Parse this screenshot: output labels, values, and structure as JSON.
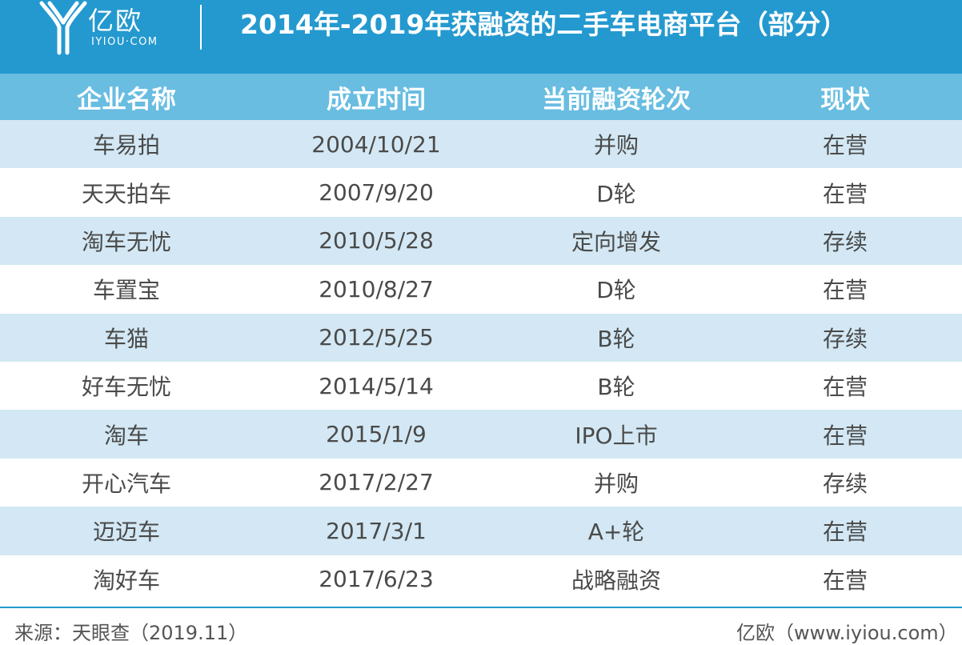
{
  "header": {
    "logo_text": "亿欧",
    "logo_sub": "IYIOU·COM",
    "title": "2014年-2019年获融资的二手车电商平台（部分）"
  },
  "table": {
    "columns": [
      "企业名称",
      "成立时间",
      "当前融资轮次",
      "现状"
    ],
    "rows": [
      [
        "车易拍",
        "2004/10/21",
        "并购",
        "在营"
      ],
      [
        "天天拍车",
        "2007/9/20",
        "D轮",
        "在营"
      ],
      [
        "淘车无忧",
        "2010/5/28",
        "定向增发",
        "存续"
      ],
      [
        "车置宝",
        "2010/8/27",
        "D轮",
        "在营"
      ],
      [
        "车猫",
        "2012/5/25",
        "B轮",
        "存续"
      ],
      [
        "好车无忧",
        "2014/5/14",
        "B轮",
        "在营"
      ],
      [
        "淘车",
        "2015/1/9",
        "IPO上市",
        "在营"
      ],
      [
        "开心汽车",
        "2017/2/27",
        "并购",
        "存续"
      ],
      [
        "迈迈车",
        "2017/3/1",
        "A+轮",
        "在营"
      ],
      [
        "淘好车",
        "2017/6/23",
        "战略融资",
        "在营"
      ]
    ]
  },
  "footer": {
    "source": "来源：天眼查（2019.11）",
    "credit": "亿欧（www.iyiou.com）"
  },
  "colors": {
    "header_bg": "#2499cf",
    "table_head_bg": "#68bde1",
    "row_stripe": "#d3e8f4"
  }
}
